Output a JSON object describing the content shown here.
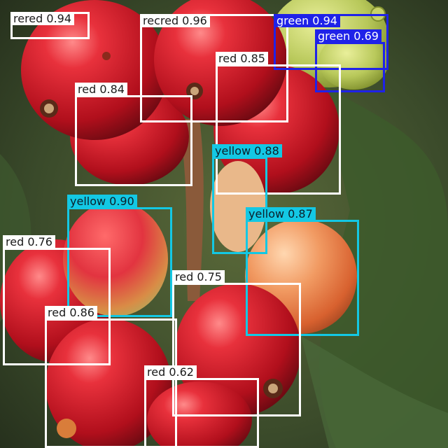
{
  "image": {
    "subject": "coffee cherries on a branch",
    "class_colors": {
      "red": "#ffffff",
      "green": "#1f22e8",
      "yellow": "#13c8e4"
    }
  },
  "detections": [
    {
      "label": "rered 0.94",
      "class": "red"
    },
    {
      "label": "recred 0.96",
      "class": "red"
    },
    {
      "label": "green 0.94",
      "class": "green"
    },
    {
      "label": "green 0.69",
      "class": "green"
    },
    {
      "label": "red 0.85",
      "class": "red"
    },
    {
      "label": "red 0.84",
      "class": "red"
    },
    {
      "label": "yellow 0.88",
      "class": "yellow"
    },
    {
      "label": "yellow 0.90",
      "class": "yellow"
    },
    {
      "label": "yellow 0.87",
      "class": "yellow"
    },
    {
      "label": "red 0.76",
      "class": "red"
    },
    {
      "label": "red 0.75",
      "class": "red"
    },
    {
      "label": "red 0.86",
      "class": "red"
    },
    {
      "label": "red 0.62",
      "class": "red"
    }
  ]
}
